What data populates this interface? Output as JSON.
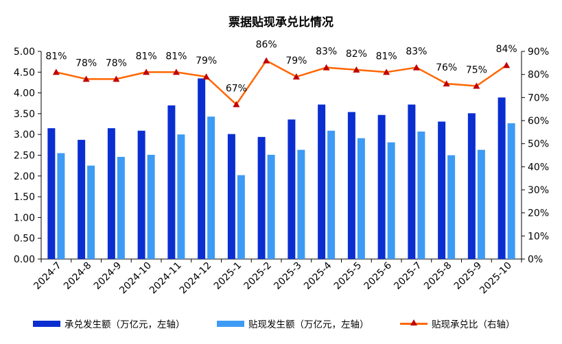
{
  "chart_data": {
    "type": "bar",
    "title": "票据贴现承兑比情况",
    "categories": [
      "2024-7",
      "2024-8",
      "2024-9",
      "2024-10",
      "2024-11",
      "2024-12",
      "2025-1",
      "2025-2",
      "2025-3",
      "2025-4",
      "2025-5",
      "2025-6",
      "2025-7",
      "2025-8",
      "2025-9",
      "2025-10"
    ],
    "y_left": {
      "ylim": [
        0,
        5
      ],
      "ticks": [
        "0.00",
        "0.50",
        "1.00",
        "1.50",
        "2.00",
        "2.50",
        "3.00",
        "3.50",
        "4.00",
        "4.50",
        "5.00"
      ]
    },
    "y_right": {
      "ylim": [
        0,
        90
      ],
      "ticks": [
        "0%",
        "10%",
        "20%",
        "30%",
        "40%",
        "50%",
        "60%",
        "70%",
        "80%",
        "90%"
      ]
    },
    "series": [
      {
        "name": "承兑发生额（万亿元，左轴）",
        "type": "bar",
        "axis": "left",
        "color": "#0b2ed1",
        "values": [
          3.15,
          2.87,
          3.15,
          3.09,
          3.7,
          4.35,
          3.01,
          2.94,
          3.36,
          3.72,
          3.54,
          3.47,
          3.72,
          3.31,
          3.51,
          3.89
        ]
      },
      {
        "name": "贴现发生额（万亿元，左轴）",
        "type": "bar",
        "axis": "left",
        "color": "#3d9bf5",
        "values": [
          2.55,
          2.25,
          2.46,
          2.51,
          3.0,
          3.43,
          2.02,
          2.51,
          2.63,
          3.09,
          2.91,
          2.81,
          3.07,
          2.5,
          2.63,
          3.27
        ]
      },
      {
        "name": "贴现承兑比（右轴）",
        "type": "line",
        "axis": "right",
        "color": "#ff6600",
        "marker_color": "#c00000",
        "values": [
          81,
          78,
          78,
          81,
          81,
          79,
          67,
          86,
          79,
          83,
          82,
          81,
          83,
          76,
          75,
          84
        ],
        "labels": [
          "81%",
          "78%",
          "78%",
          "81%",
          "81%",
          "79%",
          "67%",
          "86%",
          "79%",
          "83%",
          "82%",
          "81%",
          "83%",
          "76%",
          "75%",
          "84%"
        ]
      }
    ],
    "grid": false,
    "legend_position": "bottom"
  }
}
